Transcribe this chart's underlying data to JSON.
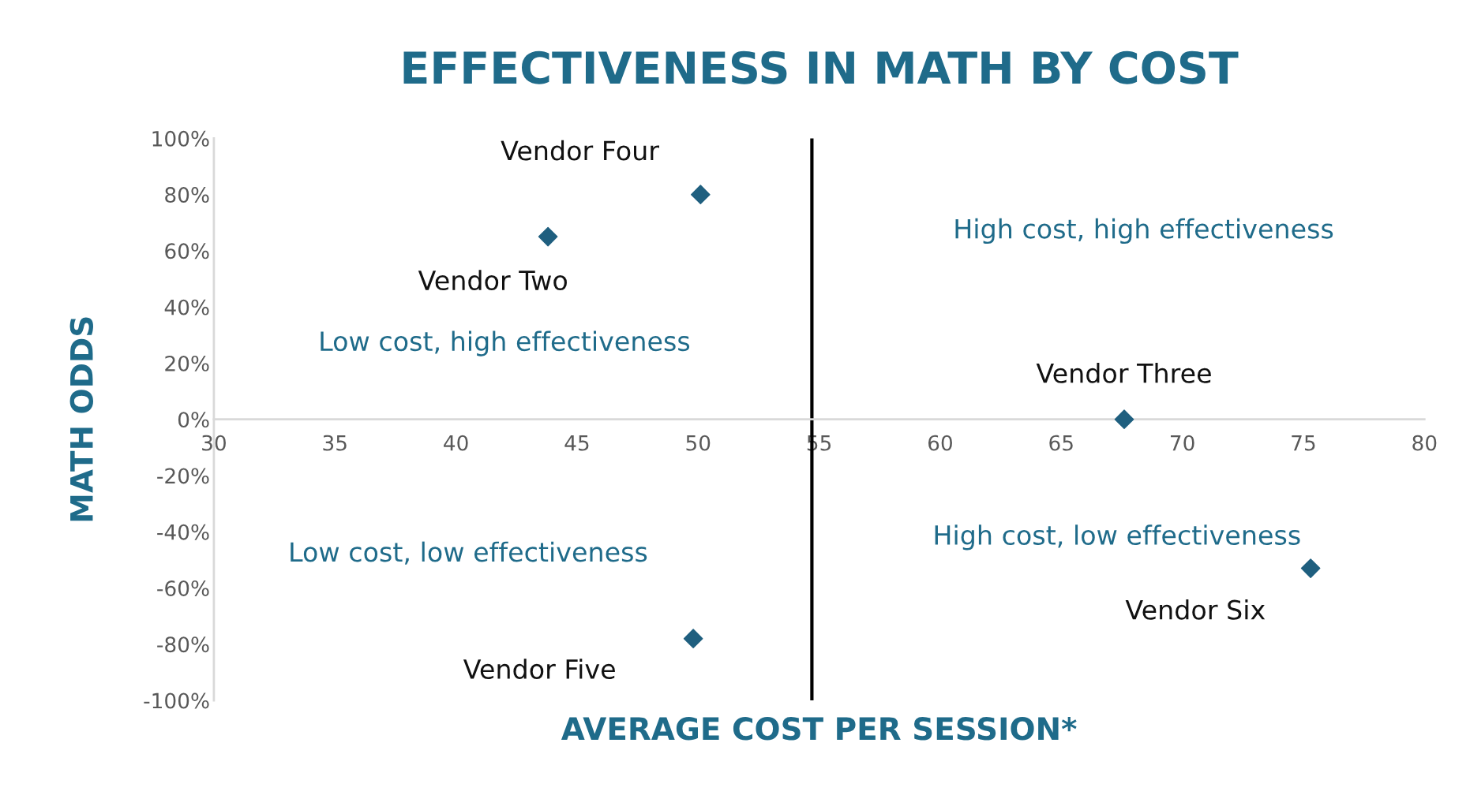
{
  "chart_data": {
    "type": "scatter",
    "title": "EFFECTIVENESS IN MATH BY COST",
    "xlabel": "AVERAGE COST PER SESSION*",
    "ylabel": "MATH ODDS",
    "series": [
      {
        "name": "Vendor Four",
        "color": "#1f5f7f",
        "x": [
          50.1
        ],
        "values": [
          80
        ]
      },
      {
        "name": "Vendor Two",
        "color": "#1f5f7f",
        "x": [
          43.8
        ],
        "values": [
          65
        ]
      },
      {
        "name": "Vendor Three",
        "color": "#1f5f7f",
        "x": [
          67.6
        ],
        "values": [
          0
        ]
      },
      {
        "name": "Vendor Six",
        "color": "#1f5f7f",
        "x": [
          75.3
        ],
        "values": [
          -53
        ]
      },
      {
        "name": "Vendor Five",
        "color": "#1f5f7f",
        "x": [
          49.8
        ],
        "values": [
          -78
        ]
      }
    ],
    "marker": "diamond",
    "grid": false,
    "legend": false,
    "xlim": [
      30,
      80
    ],
    "xticks": [
      30,
      35,
      40,
      45,
      50,
      55,
      60,
      65,
      70,
      75,
      80
    ],
    "ylim": [
      -100,
      100
    ],
    "yticks": [
      {
        "value": -100,
        "label": "-100%"
      },
      {
        "value": -80,
        "label": "-80%"
      },
      {
        "value": -60,
        "label": "-60%"
      },
      {
        "value": -40,
        "label": "-40%"
      },
      {
        "value": -20,
        "label": "-20%"
      },
      {
        "value": 0,
        "label": "0%"
      },
      {
        "value": 20,
        "label": "20%"
      },
      {
        "value": 40,
        "label": "40%"
      },
      {
        "value": 60,
        "label": "60%"
      },
      {
        "value": 80,
        "label": "80%"
      },
      {
        "value": 100,
        "label": "100%"
      }
    ],
    "ref_lines": [
      {
        "axis": "x",
        "value": 54.7,
        "color": "#000000"
      }
    ],
    "annotations": [
      "High cost, high effectiveness",
      "Low cost, high effectiveness",
      "Low cost, low effectiveness",
      "High cost, low effectiveness"
    ]
  }
}
